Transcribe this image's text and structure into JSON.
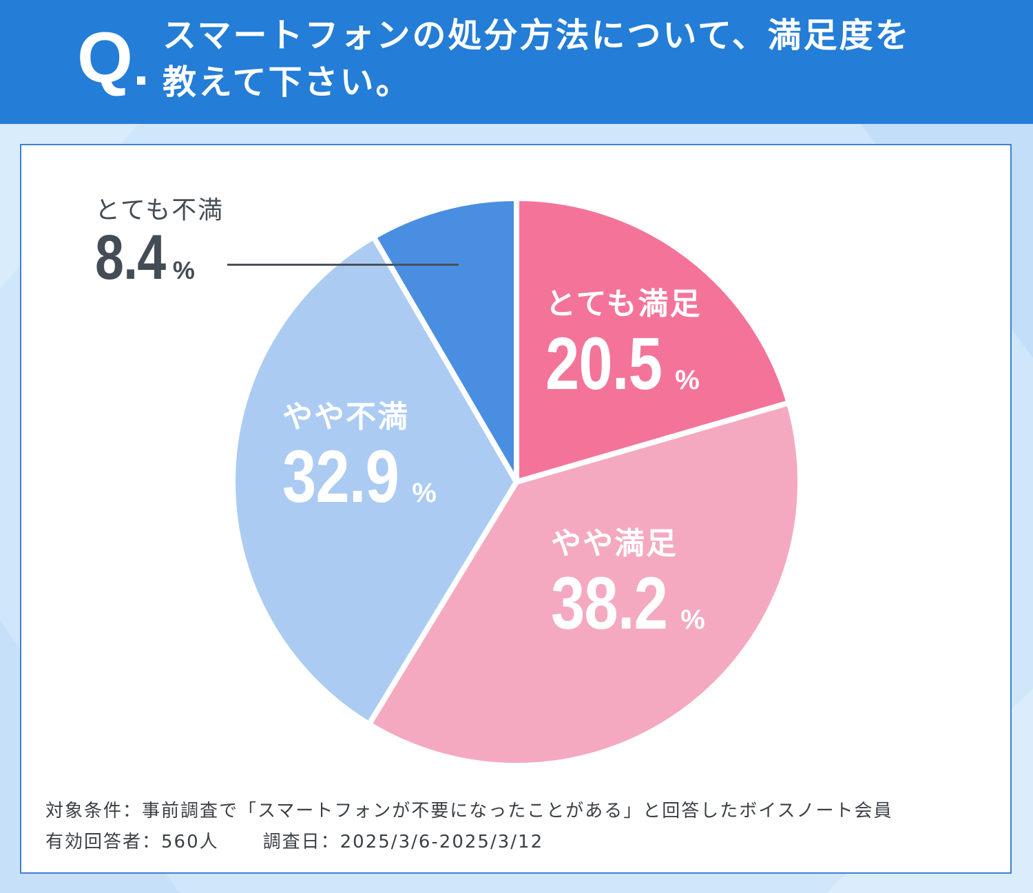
{
  "question": {
    "mark": "Q",
    "line1": "スマートフォンの処分方法について、満足度を",
    "line2": "教えて下さい。"
  },
  "chart_data": {
    "type": "pie",
    "slices": [
      {
        "name": "とても満足",
        "value": 20.5,
        "color": "#f47399",
        "value_label": "20.5",
        "unit": "%"
      },
      {
        "name": "やや満足",
        "value": 38.2,
        "color": "#f4a9c1",
        "value_label": "38.2",
        "unit": "%"
      },
      {
        "name": "やや不満",
        "value": 32.9,
        "color": "#abcbf3",
        "value_label": "32.9",
        "unit": "%"
      },
      {
        "name": "とても不満",
        "value": 8.4,
        "color": "#4a8ee2",
        "value_label": "8.4",
        "unit": "%"
      }
    ],
    "start": "12 o'clock",
    "direction": "clockwise",
    "legend": "none"
  },
  "footnote": {
    "target": "対象条件：事前調査で「スマートフォンが不要になったことがある」と回答したボイスノート会員",
    "respondents": "有効回答者：560人",
    "survey_date": "調査日：2025/3/6-2025/3/12"
  }
}
